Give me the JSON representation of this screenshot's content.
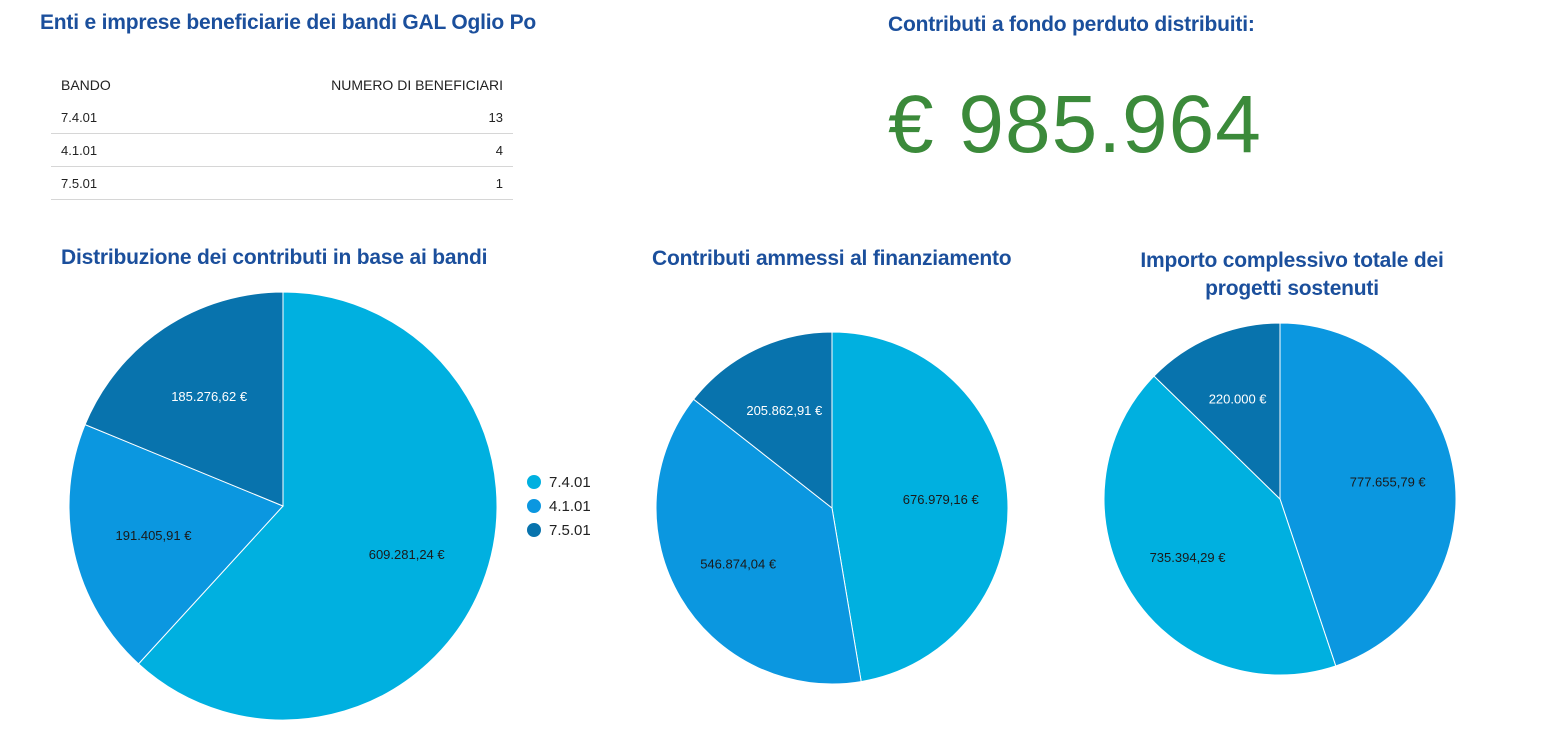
{
  "colors": {
    "heading": "#1b4f9c",
    "total": "#3b8a3a",
    "bando_7_4_01": "#00b0e0",
    "bando_4_1_01": "#0b97e0",
    "bando_7_5_01": "#0873ad"
  },
  "table": {
    "title": "Enti e imprese beneficiarie dei bandi GAL Oglio Po",
    "headers": [
      "BANDO",
      "NUMERO DI BENEFICIARI"
    ],
    "rows": [
      {
        "bando": "7.4.01",
        "count": "13"
      },
      {
        "bando": "4.1.01",
        "count": "4"
      },
      {
        "bando": "7.5.01",
        "count": "1"
      }
    ]
  },
  "total": {
    "title": "Contributi a fondo perduto distribuiti:",
    "value": "€ 985.964"
  },
  "legend": [
    {
      "label": "7.4.01",
      "color": "#00b0e0"
    },
    {
      "label": "4.1.01",
      "color": "#0b97e0"
    },
    {
      "label": "7.5.01",
      "color": "#0873ad"
    }
  ],
  "chart_data": [
    {
      "type": "pie",
      "title": "Distribuzione dei contributi in base ai bandi",
      "categories": [
        "7.4.01",
        "4.1.01",
        "7.5.01"
      ],
      "values": [
        609281.24,
        191405.91,
        185276.62
      ],
      "labels": [
        "609.281,24 €",
        "191.405,91 €",
        "185.276,62 €"
      ],
      "colors": [
        "#00b0e0",
        "#0b97e0",
        "#0873ad"
      ],
      "legend": "right"
    },
    {
      "type": "pie",
      "title": "Contributi ammessi al finanziamento",
      "categories": [
        "7.4.01",
        "4.1.01",
        "7.5.01"
      ],
      "values": [
        676979.16,
        546874.04,
        205862.91
      ],
      "labels": [
        "676.979,16 €",
        "546.874,04 €",
        "205.862,91 €"
      ],
      "colors": [
        "#00b0e0",
        "#0b97e0",
        "#0873ad"
      ]
    },
    {
      "type": "pie",
      "title": "Importo complessivo totale dei progetti sostenuti",
      "categories": [
        "4.1.01",
        "7.4.01",
        "7.5.01"
      ],
      "values": [
        777655.79,
        735394.29,
        220000
      ],
      "labels": [
        "777.655,79 €",
        "735.394,29 €",
        "220.000 €"
      ],
      "colors": [
        "#0b97e0",
        "#00b0e0",
        "#0873ad"
      ]
    }
  ]
}
